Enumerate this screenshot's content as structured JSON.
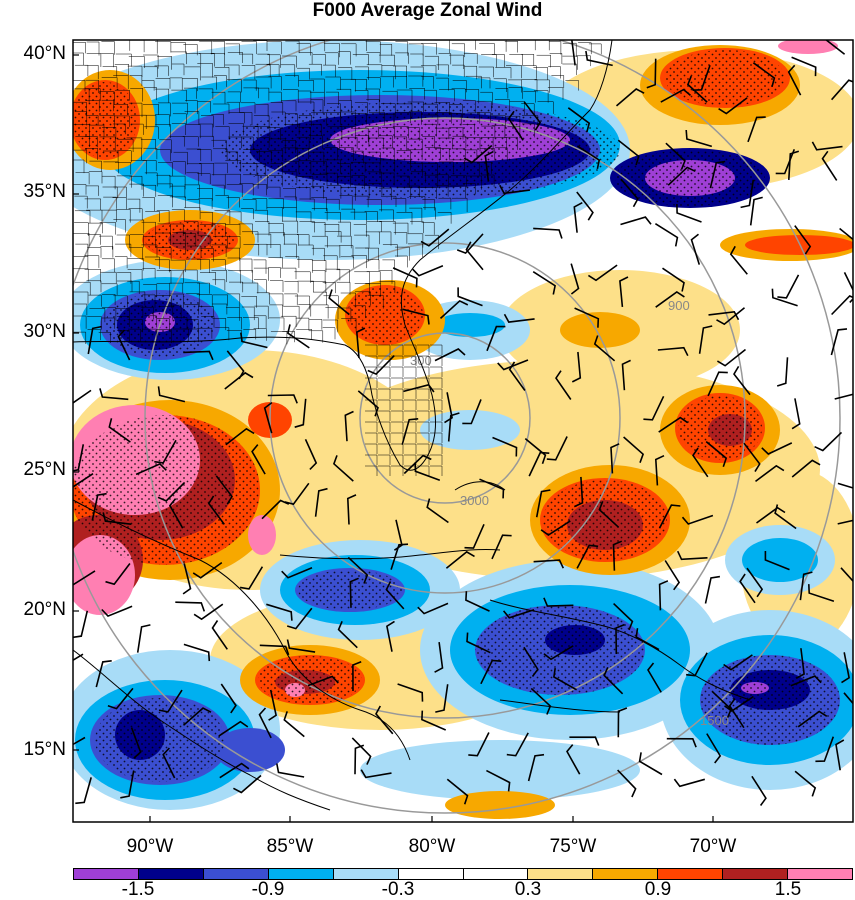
{
  "title": "F000 Average Zonal Wind",
  "lat_labels": [
    "40°N",
    "35°N",
    "30°N",
    "25°N",
    "20°N",
    "15°N"
  ],
  "lon_labels": [
    "90°W",
    "85°W",
    "80°W",
    "75°W",
    "70°W"
  ],
  "colorbar": {
    "colors": [
      "#9f3fd6",
      "#00008b",
      "#3b4fd1",
      "#00b0f0",
      "#a8dcf7",
      "#ffffff",
      "#ffffff",
      "#fde089",
      "#f7a800",
      "#ff4400",
      "#b02020",
      "#ff7fb2"
    ],
    "tick_labels": [
      "-1.5",
      "-0.9",
      "-0.3",
      "0.3",
      "0.9",
      "1.5"
    ]
  },
  "range_ring_labels": [
    "300",
    "900",
    "1500",
    "3000"
  ],
  "features": [
    "state-boundaries",
    "county-boundaries",
    "coastline",
    "wind-barbs",
    "stippling",
    "range-rings"
  ]
}
